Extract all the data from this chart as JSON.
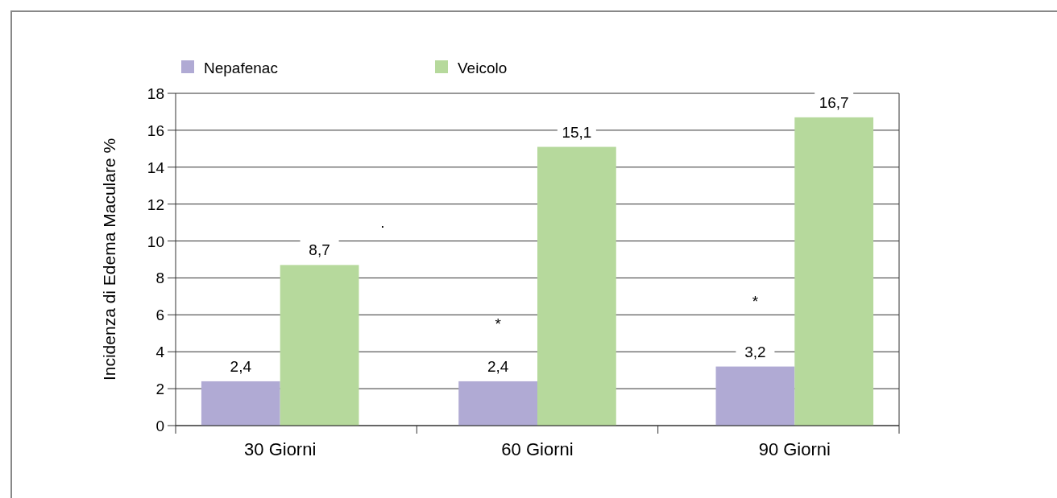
{
  "chart_data": {
    "type": "bar",
    "ylabel": "Incidenza di Edema  Maculare %",
    "categories": [
      "30 Giorni",
      "60 Giorni",
      "90 Giorni"
    ],
    "series": [
      {
        "name": "Nepafenac",
        "color": "#b0aad4",
        "values": [
          2.4,
          2.4,
          3.2
        ],
        "value_labels": [
          "2,4",
          "2,4",
          "3,2"
        ]
      },
      {
        "name": "Veicolo",
        "color": "#b6d99c",
        "values": [
          8.7,
          15.1,
          16.7
        ],
        "value_labels": [
          "8,7",
          "15,1",
          "16,7"
        ]
      }
    ],
    "ylim": [
      0,
      18
    ],
    "yticks": [
      0,
      2,
      4,
      6,
      8,
      10,
      12,
      14,
      16,
      18
    ],
    "grid": "y",
    "legend": "top left",
    "annotations": [
      ".",
      {
        "text": "*",
        "x": "60 Giorni",
        "y": 5.5
      },
      {
        "text": "*",
        "x": "90 Giorni",
        "y": 6.7
      }
    ]
  }
}
